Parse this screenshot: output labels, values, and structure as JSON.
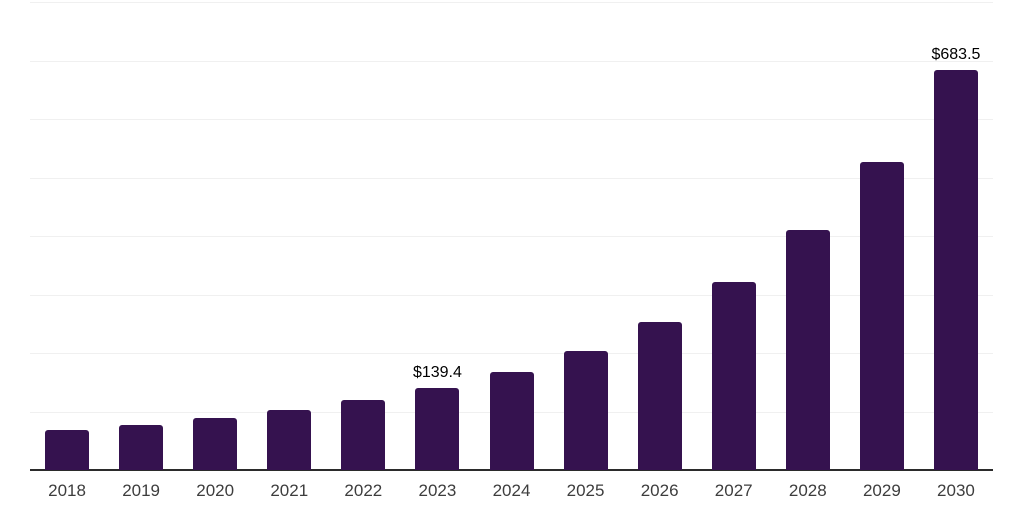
{
  "chart_data": {
    "type": "bar",
    "title": "",
    "xlabel": "",
    "ylabel": "",
    "categories": [
      "2018",
      "2019",
      "2020",
      "2021",
      "2022",
      "2023",
      "2024",
      "2025",
      "2026",
      "2027",
      "2028",
      "2029",
      "2030"
    ],
    "values": [
      68.4,
      77.5,
      88.4,
      102.6,
      119.7,
      139.4,
      167.0,
      203.4,
      252.5,
      320.9,
      410.3,
      527.1,
      683.5
    ],
    "value_labels": {
      "2023": "$139.4",
      "2030": "$683.5"
    },
    "currency_prefix": "$",
    "ylim": [
      0,
      800
    ],
    "grid_interval": 100,
    "grid": "horizontal",
    "legend": "none",
    "y_tick_labels_visible": false,
    "colors": {
      "bar": "#35124F",
      "axis_line": "#2b2b2b",
      "gridline": "#f0f0f0",
      "tick_label": "#3d3d3d",
      "value_label": "#000000",
      "background": "#ffffff"
    }
  }
}
